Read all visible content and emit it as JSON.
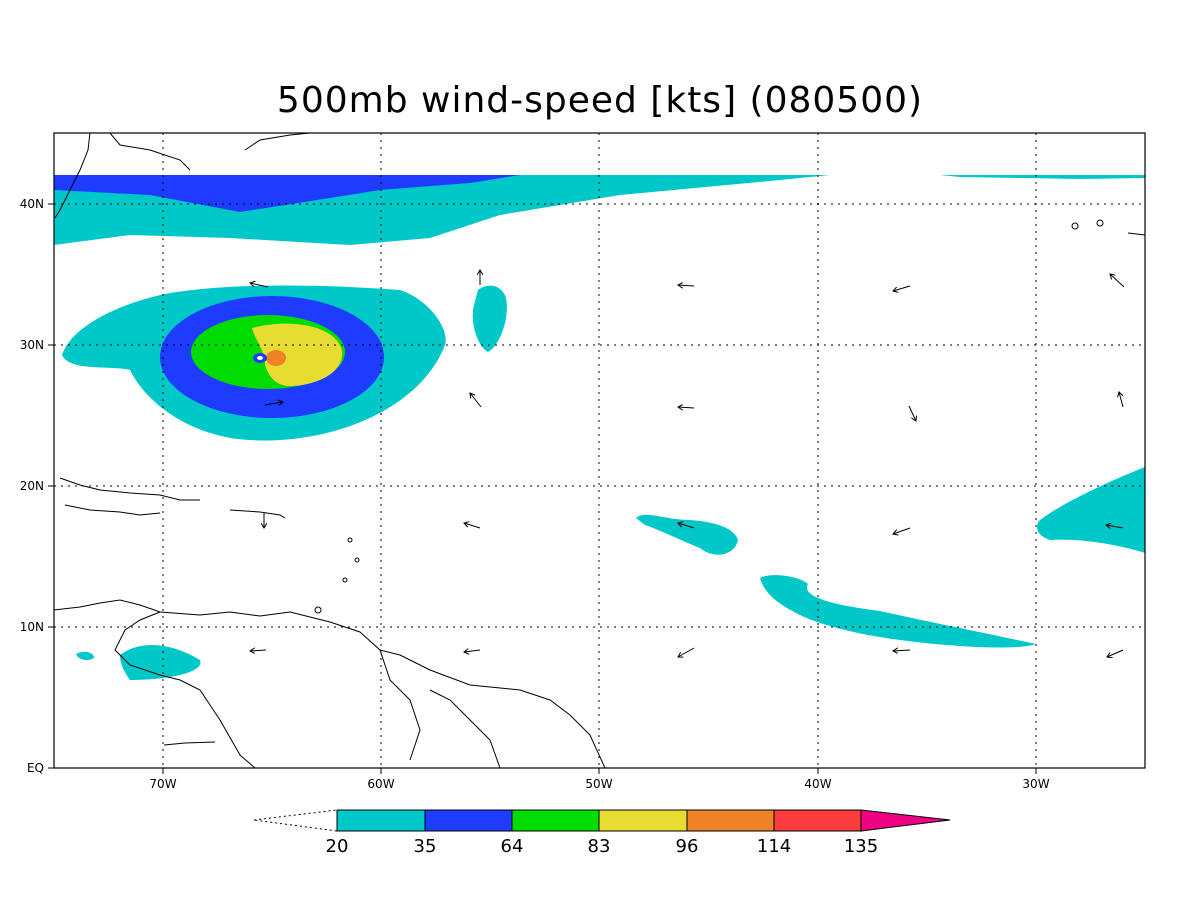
{
  "title": "500mb wind-speed [kts] (080500)",
  "axes": {
    "lon_ticks": [
      "70W",
      "60W",
      "50W",
      "40W",
      "30W"
    ],
    "lat_ticks": [
      "40N",
      "30N",
      "20N",
      "10N",
      "EQ"
    ],
    "lon_range": [
      -75,
      -25
    ],
    "lat_range": [
      0,
      45
    ],
    "grid": "dotted"
  },
  "colorbar": {
    "levels": [
      "20",
      "35",
      "64",
      "83",
      "96",
      "114",
      "135"
    ],
    "colors": [
      "#00c8c8",
      "#1e3cff",
      "#00dc00",
      "#e6dc32",
      "#f08228",
      "#fa3c3c",
      "#f00082"
    ]
  },
  "features": {
    "storm": "hurricane-core",
    "coastlines": "Caribbean-and-South-America",
    "vectors": "wind-arrows"
  }
}
